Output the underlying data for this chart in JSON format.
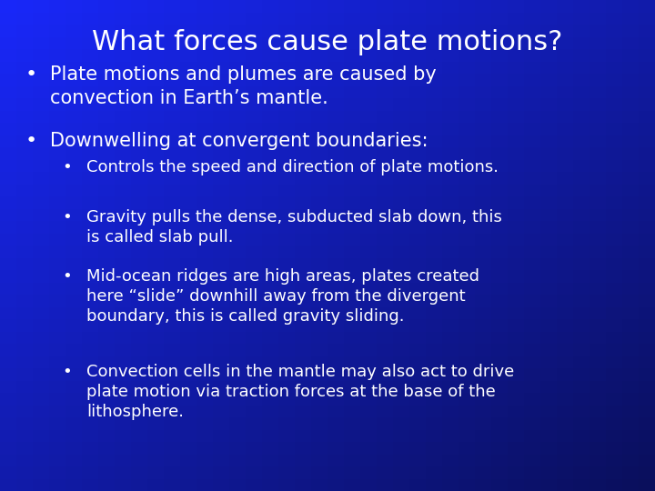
{
  "title": "What forces cause plate motions?",
  "title_fontsize": 22,
  "text_color": "#FFFFFF",
  "bg_top_left": "#0a1560",
  "bg_bottom_right": "#1a35e0",
  "bullet1": "Plate motions and plumes are caused by\nconvection in Earth’s mantle.",
  "bullet2": "Downwelling at convergent boundaries:",
  "sub_bullets": [
    "Controls the speed and direction of plate motions.",
    "Gravity pulls the dense, subducted slab down, this\nis called slab pull.",
    "Mid-ocean ridges are high areas, plates created\nhere “slide” downhill away from the divergent\nboundary, this is called gravity sliding.",
    "Convection cells in the mantle may also act to drive\nplate motion via traction forces at the base of the\nlithosphere."
  ],
  "main_fontsize": 15,
  "sub_fontsize": 13
}
